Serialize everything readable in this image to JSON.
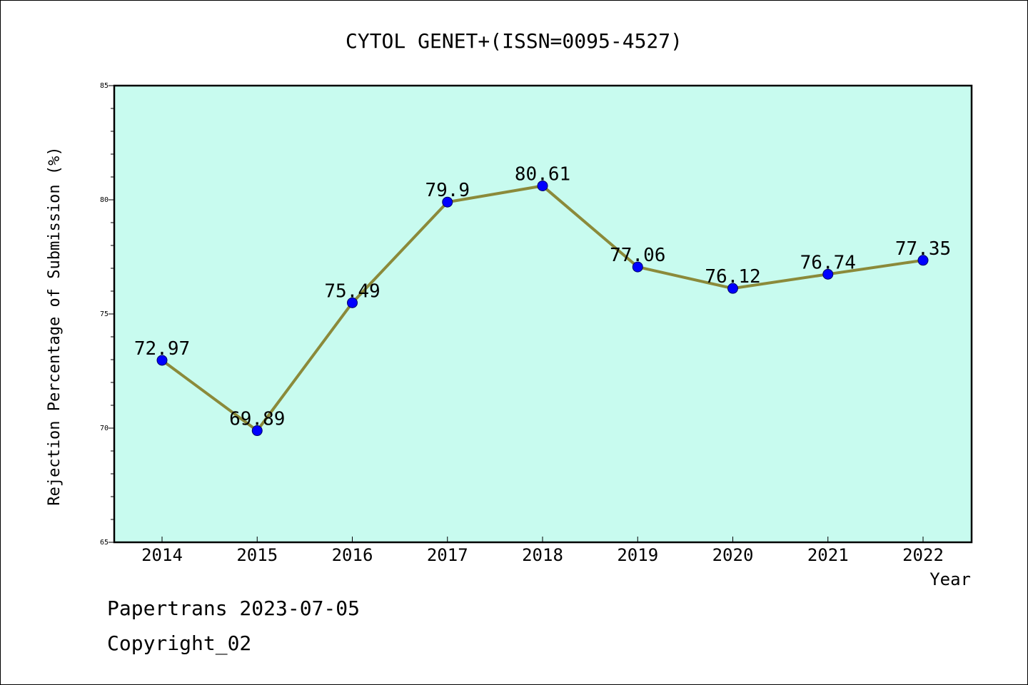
{
  "chart_data": {
    "type": "line",
    "title": "CYTOL GENET+(ISSN=0095-4527)",
    "xlabel": "Year",
    "ylabel": "Rejection Percentage of Submission (%)",
    "categories": [
      "2014",
      "2015",
      "2016",
      "2017",
      "2018",
      "2019",
      "2020",
      "2021",
      "2022"
    ],
    "series": [
      {
        "values": [
          72.97,
          69.89,
          75.49,
          79.9,
          80.61,
          77.06,
          76.12,
          76.74,
          77.35
        ],
        "labels": [
          "72.97",
          "69.89",
          "75.49",
          "79.9",
          "80.61",
          "77.06",
          "76.12",
          "76.74",
          "77.35"
        ]
      }
    ],
    "ylim": [
      65,
      85
    ],
    "yticks": [
      "65",
      "70",
      "75",
      "80",
      "85"
    ],
    "grid": false,
    "colors": {
      "plot_background": "#c8fbef",
      "line": "#8b8a3a",
      "marker": "#0000ff"
    }
  },
  "footer": {
    "line1": "Papertrans 2023-07-05",
    "line2": "Copyright_02"
  }
}
